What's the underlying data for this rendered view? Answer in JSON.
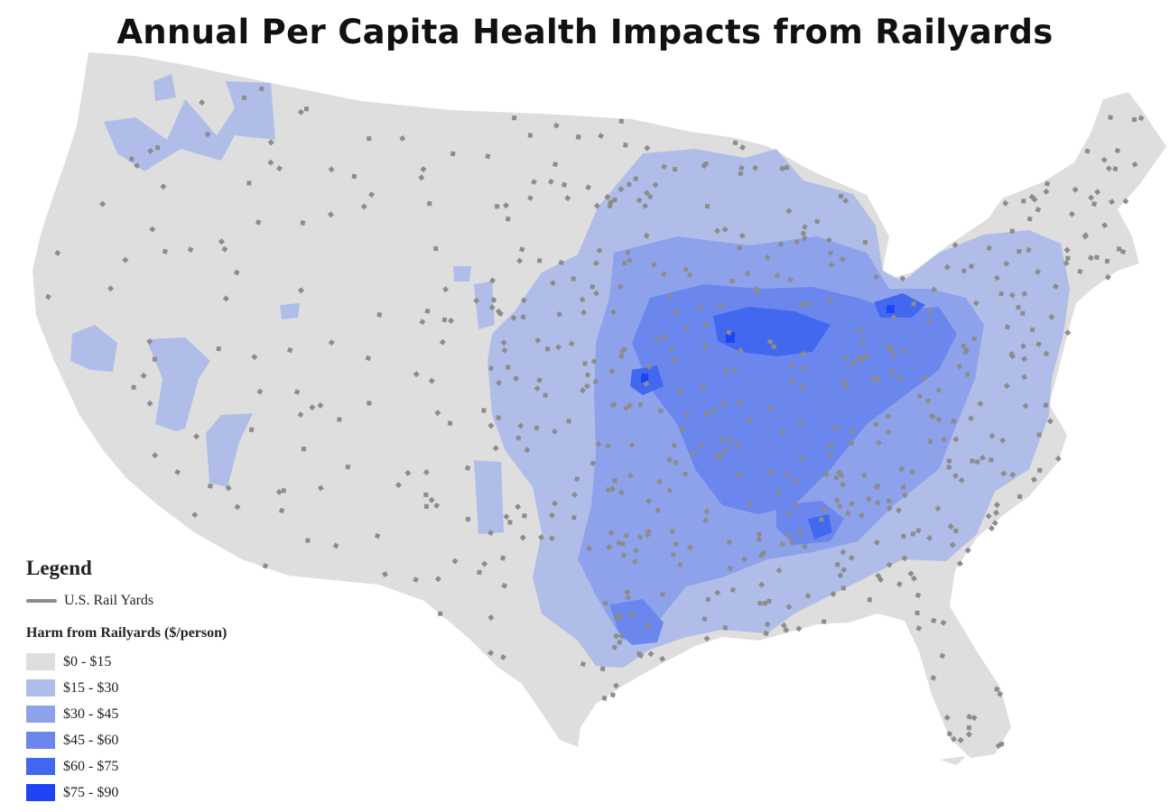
{
  "title": "Annual Per Capita Health Impacts from Railyards",
  "legend": {
    "title": "Legend",
    "rail_yards_label": "U.S. Rail Yards",
    "rail_yard_color": "#8c8c8c",
    "harm_title": "Harm from Railyards ($/person)",
    "classes": [
      {
        "label": "$0 - $15",
        "color": "#dedede"
      },
      {
        "label": "$15 - $30",
        "color": "#b1bde9"
      },
      {
        "label": "$30 - $45",
        "color": "#8ea2ec"
      },
      {
        "label": "$45 - $60",
        "color": "#6b87ee"
      },
      {
        "label": "$60 - $75",
        "color": "#4368f0"
      },
      {
        "label": "$75 - $90",
        "color": "#1f44f5"
      }
    ]
  }
}
